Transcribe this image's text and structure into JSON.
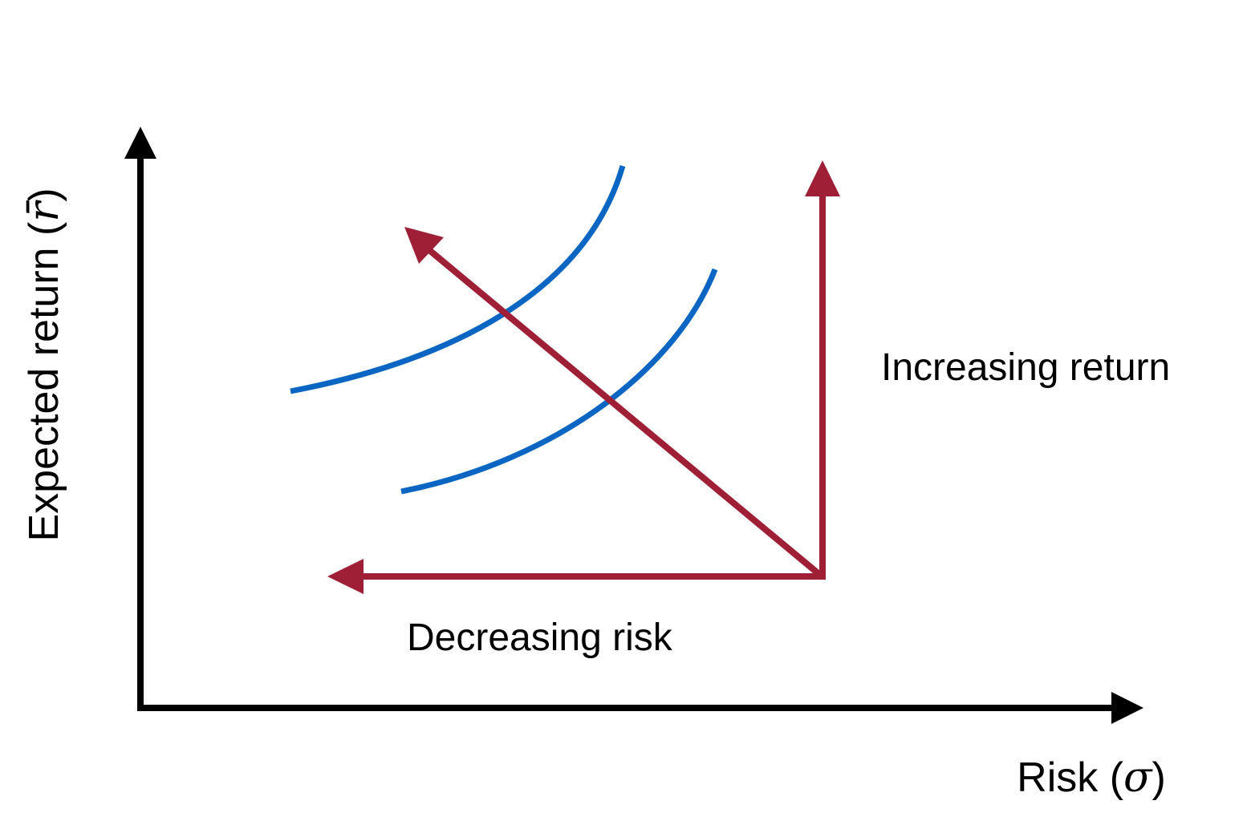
{
  "axes": {
    "x_label": {
      "prefix": "Risk (",
      "symbol": "σ",
      "suffix": ")"
    },
    "y_label": {
      "prefix": "Expected return (",
      "symbol": "r̄",
      "suffix": ")"
    },
    "axis_color": "#000000"
  },
  "arrows": {
    "increasing_return_label": "Increasing return",
    "decreasing_risk_label": "Decreasing risk",
    "color": "#9e1f36"
  },
  "curves": {
    "count": 2,
    "color": "#0a66c2"
  }
}
